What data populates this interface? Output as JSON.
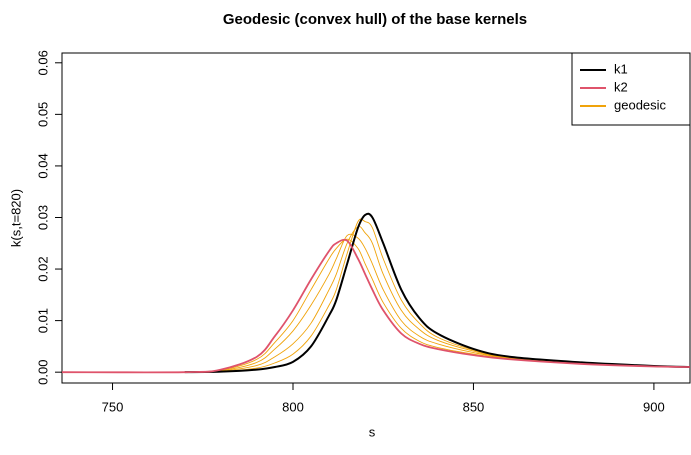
{
  "chart_data": {
    "type": "line",
    "title": "Geodesic (convex hull) of the base kernels",
    "xlabel": "s",
    "ylabel": "k(s,t=820)",
    "x": [
      736,
      770,
      780,
      790,
      795,
      800,
      805,
      810,
      812,
      815,
      818,
      820,
      822,
      825,
      830,
      835,
      840,
      850,
      860,
      880,
      900,
      910
    ],
    "series": [
      {
        "name": "k1",
        "color": "#000000",
        "values": [
          null,
          0,
          0.0001,
          0.0005,
          0.001,
          0.002,
          0.005,
          0.011,
          0.014,
          0.021,
          0.028,
          0.0305,
          0.03,
          0.025,
          0.016,
          0.0105,
          0.0075,
          0.0045,
          0.003,
          0.0019,
          0.0012,
          0.001
        ]
      },
      {
        "name": "k2",
        "color": "#DF536B",
        "values": [
          0,
          0,
          0.0005,
          0.003,
          0.007,
          0.012,
          0.018,
          0.0235,
          0.025,
          0.0255,
          0.022,
          0.019,
          0.016,
          0.012,
          0.0075,
          0.0055,
          0.0045,
          0.0033,
          0.0025,
          0.0016,
          0.0011,
          0.001
        ]
      },
      {
        "name": "geodesic",
        "color": "#F0A30A",
        "curves": [
          [
            null,
            0,
            0.0004,
            0.0025,
            0.0058,
            0.01,
            0.016,
            0.022,
            0.024,
            0.0258,
            0.024,
            0.021,
            0.018,
            0.0135,
            0.0085,
            0.006,
            0.0048,
            0.0035,
            0.0026,
            0.0017,
            0.0011,
            0.001
          ],
          [
            null,
            0,
            0.0003,
            0.0019,
            0.0045,
            0.008,
            0.013,
            0.019,
            0.022,
            0.0265,
            0.026,
            0.024,
            0.021,
            0.016,
            0.01,
            0.007,
            0.0055,
            0.0038,
            0.0027,
            0.0017,
            0.0011,
            0.001
          ],
          [
            null,
            0,
            0.0002,
            0.0013,
            0.003,
            0.0055,
            0.0095,
            0.016,
            0.019,
            0.025,
            0.0282,
            0.027,
            0.025,
            0.019,
            0.012,
            0.0083,
            0.0062,
            0.0041,
            0.0028,
            0.0018,
            0.0012,
            0.001
          ],
          [
            null,
            0,
            0.0001,
            0.0008,
            0.0018,
            0.0035,
            0.007,
            0.013,
            0.016,
            0.023,
            0.0292,
            0.0292,
            0.028,
            0.022,
            0.014,
            0.0095,
            0.0068,
            0.0043,
            0.0029,
            0.0018,
            0.0012,
            0.001
          ]
        ]
      }
    ],
    "xlim": [
      736,
      910
    ],
    "ylim": [
      -0.0021,
      0.0619
    ],
    "xticks": [
      750,
      800,
      850,
      900
    ],
    "yticks": [
      {
        "value": 0,
        "label": "0.00"
      },
      {
        "value": 0.01,
        "label": "0.01"
      },
      {
        "value": 0.02,
        "label": "0.02"
      },
      {
        "value": 0.03,
        "label": "0.03"
      },
      {
        "value": 0.04,
        "label": "0.04"
      },
      {
        "value": 0.05,
        "label": "0.05"
      },
      {
        "value": 0.06,
        "label": "0.06"
      }
    ],
    "legend": "top-right"
  }
}
